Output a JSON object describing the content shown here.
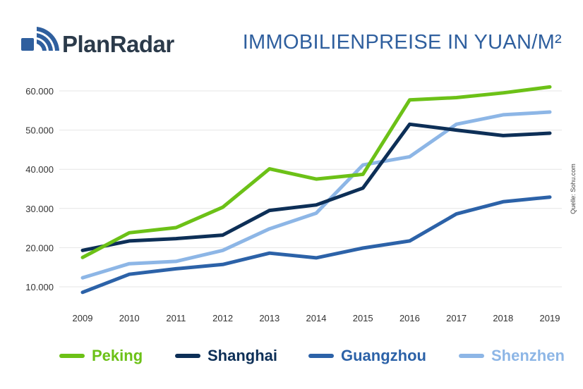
{
  "brand": {
    "name": "PlanRadar"
  },
  "title": "IMMOBILIENPREISE IN YUAN/M²",
  "source": "Quelle: Sohu.com",
  "colors": {
    "Peking": "#6cc117",
    "Shanghai": "#0d2f57",
    "Guangzhou": "#2c62a8",
    "Shenzhen": "#8db6e6"
  },
  "chart_data": {
    "type": "line",
    "title": "IMMOBILIENPREISE IN YUAN/M²",
    "x": [
      "2009",
      "2010",
      "2011",
      "2012",
      "2013",
      "2014",
      "2015",
      "2016",
      "2017",
      "2018",
      "2019"
    ],
    "ylim": [
      0,
      60000
    ],
    "yticks": [
      "10.000",
      "20.000",
      "30.000",
      "40.000",
      "50.000",
      "60.000"
    ],
    "ytick_values": [
      10000,
      20000,
      30000,
      40000,
      50000,
      60000
    ],
    "grid": true,
    "legend": "bottom",
    "series": [
      {
        "name": "Peking",
        "values": [
          17500,
          23800,
          25100,
          30300,
          40100,
          37500,
          38700,
          57700,
          58300,
          59500,
          61000
        ]
      },
      {
        "name": "Shanghai",
        "values": [
          19300,
          21700,
          22300,
          23200,
          29500,
          30900,
          35200,
          51500,
          50000,
          48600,
          49200
        ]
      },
      {
        "name": "Guangzhou",
        "values": [
          8600,
          13200,
          14600,
          15700,
          18600,
          17400,
          19900,
          21700,
          28600,
          31700,
          32900
        ]
      },
      {
        "name": "Shenzhen",
        "values": [
          12300,
          15900,
          16500,
          19300,
          24800,
          28800,
          41100,
          43200,
          51500,
          53900,
          54600
        ]
      }
    ]
  }
}
